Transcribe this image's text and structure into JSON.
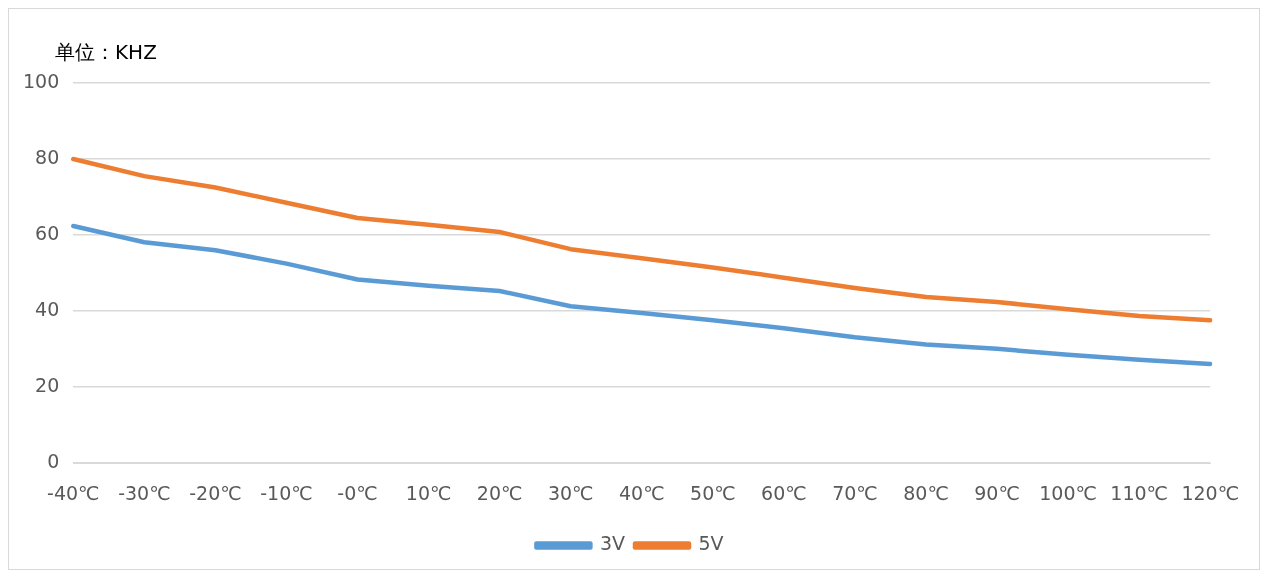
{
  "chart_data": {
    "type": "line",
    "ylabel": "单位：KHZ",
    "categories": [
      "-40℃",
      "-30℃",
      "-20℃",
      "-10℃",
      "-0℃",
      "10℃",
      "20℃",
      "30℃",
      "40℃",
      "50℃",
      "60℃",
      "70℃",
      "80℃",
      "90℃",
      "100℃",
      "110℃",
      "120℃"
    ],
    "series": [
      {
        "name": "3V",
        "color": "#5b9bd5",
        "values": [
          62.4,
          58.1,
          56,
          52.5,
          48.3,
          46.7,
          45.3,
          41.3,
          39.5,
          37.6,
          35.5,
          33.1,
          31.2,
          30.1,
          28.5,
          27.2,
          26.1
        ]
      },
      {
        "name": "5V",
        "color": "#ed7d31",
        "values": [
          80,
          75.5,
          72.5,
          68.5,
          64.5,
          62.7,
          60.8,
          56.3,
          53.9,
          51.5,
          48.8,
          46.1,
          43.7,
          42.4,
          40.5,
          38.7,
          37.6
        ]
      }
    ],
    "ylim": [
      0,
      100
    ],
    "yticks": [
      0,
      20,
      40,
      60,
      80,
      100
    ],
    "grid": "y",
    "legend": "bottom",
    "marker": "none",
    "line_style": "solid"
  }
}
